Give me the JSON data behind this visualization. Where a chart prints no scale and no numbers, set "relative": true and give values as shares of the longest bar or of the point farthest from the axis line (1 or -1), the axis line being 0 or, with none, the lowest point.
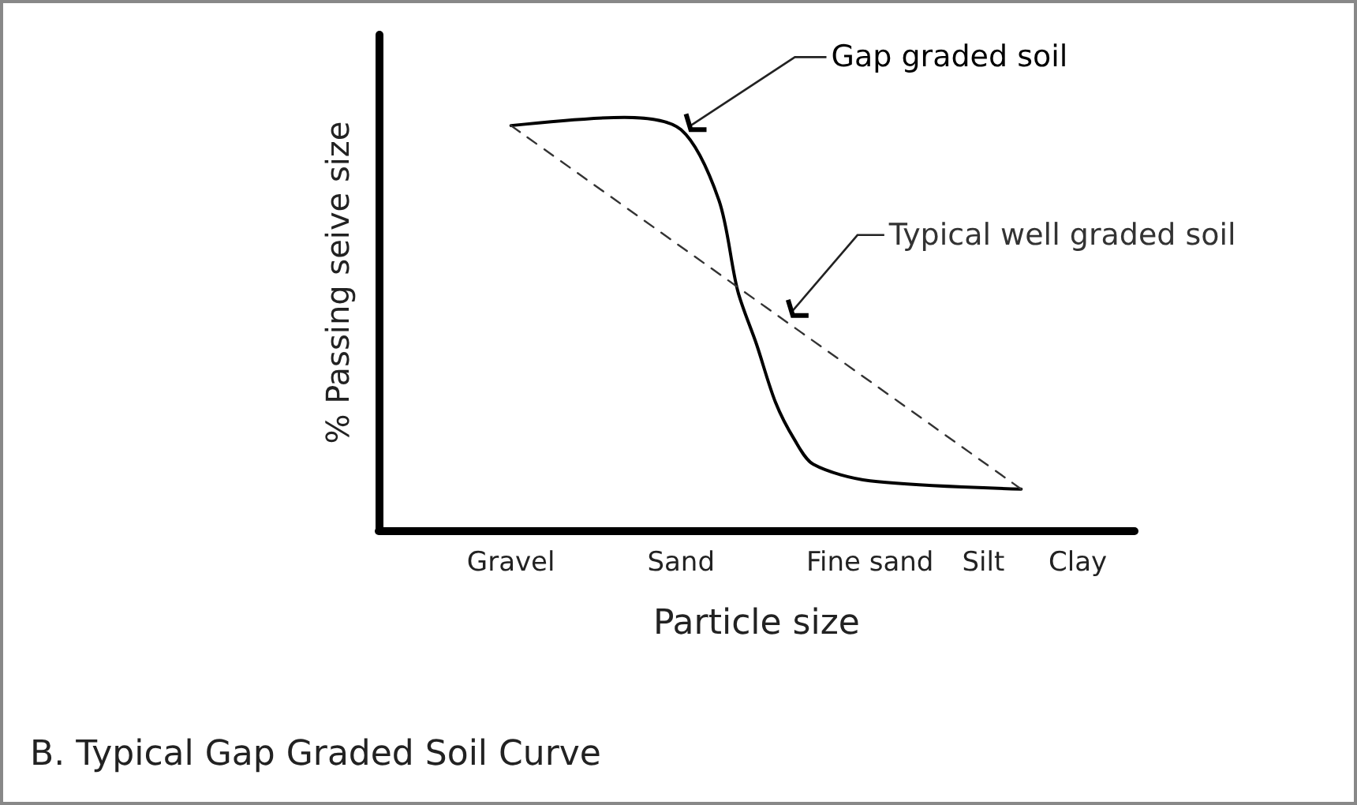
{
  "chart_data": {
    "type": "line",
    "relative": true,
    "xlabel": "Particle size",
    "ylabel": "% Passing seive size",
    "title": "B. Typical Gap Graded Soil Curve",
    "categories": [
      null,
      null,
      null,
      null,
      null,
      null,
      null,
      "Gravel",
      null,
      null,
      null,
      null,
      null,
      null,
      null,
      null,
      "Sand",
      null,
      null,
      null,
      null,
      null,
      null,
      null,
      null,
      null,
      "Fine sand",
      null,
      null,
      null,
      null,
      null,
      "Silt",
      null,
      null,
      null,
      null,
      "Clay",
      null,
      null,
      null
    ],
    "series": [
      {
        "name": "Gap graded soil",
        "color": "#000000",
        "line_style": "solid",
        "values": [
          null,
          null,
          null,
          null,
          null,
          null,
          null,
          0.98,
          null,
          null,
          null,
          null,
          null,
          1,
          null,
          null,
          0.97,
          null,
          0.8,
          0.58,
          0.45,
          0.31,
          0.22,
          0.16,
          null,
          null,
          0.12,
          null,
          null,
          null,
          null,
          null,
          null,
          null,
          0.1,
          null,
          null,
          null,
          null,
          null,
          null
        ]
      },
      {
        "name": "Typical well graded soil",
        "color": "#333333",
        "line_style": "dashed",
        "values": [
          null,
          null,
          null,
          null,
          null,
          null,
          null,
          0.98,
          null,
          null,
          null,
          null,
          null,
          null,
          null,
          null,
          null,
          null,
          null,
          null,
          null,
          null,
          null,
          null,
          null,
          null,
          null,
          null,
          null,
          null,
          null,
          null,
          null,
          null,
          0.1,
          null,
          null,
          null,
          null,
          null,
          null
        ]
      }
    ],
    "grid": false,
    "legend": false,
    "marker": "none"
  }
}
